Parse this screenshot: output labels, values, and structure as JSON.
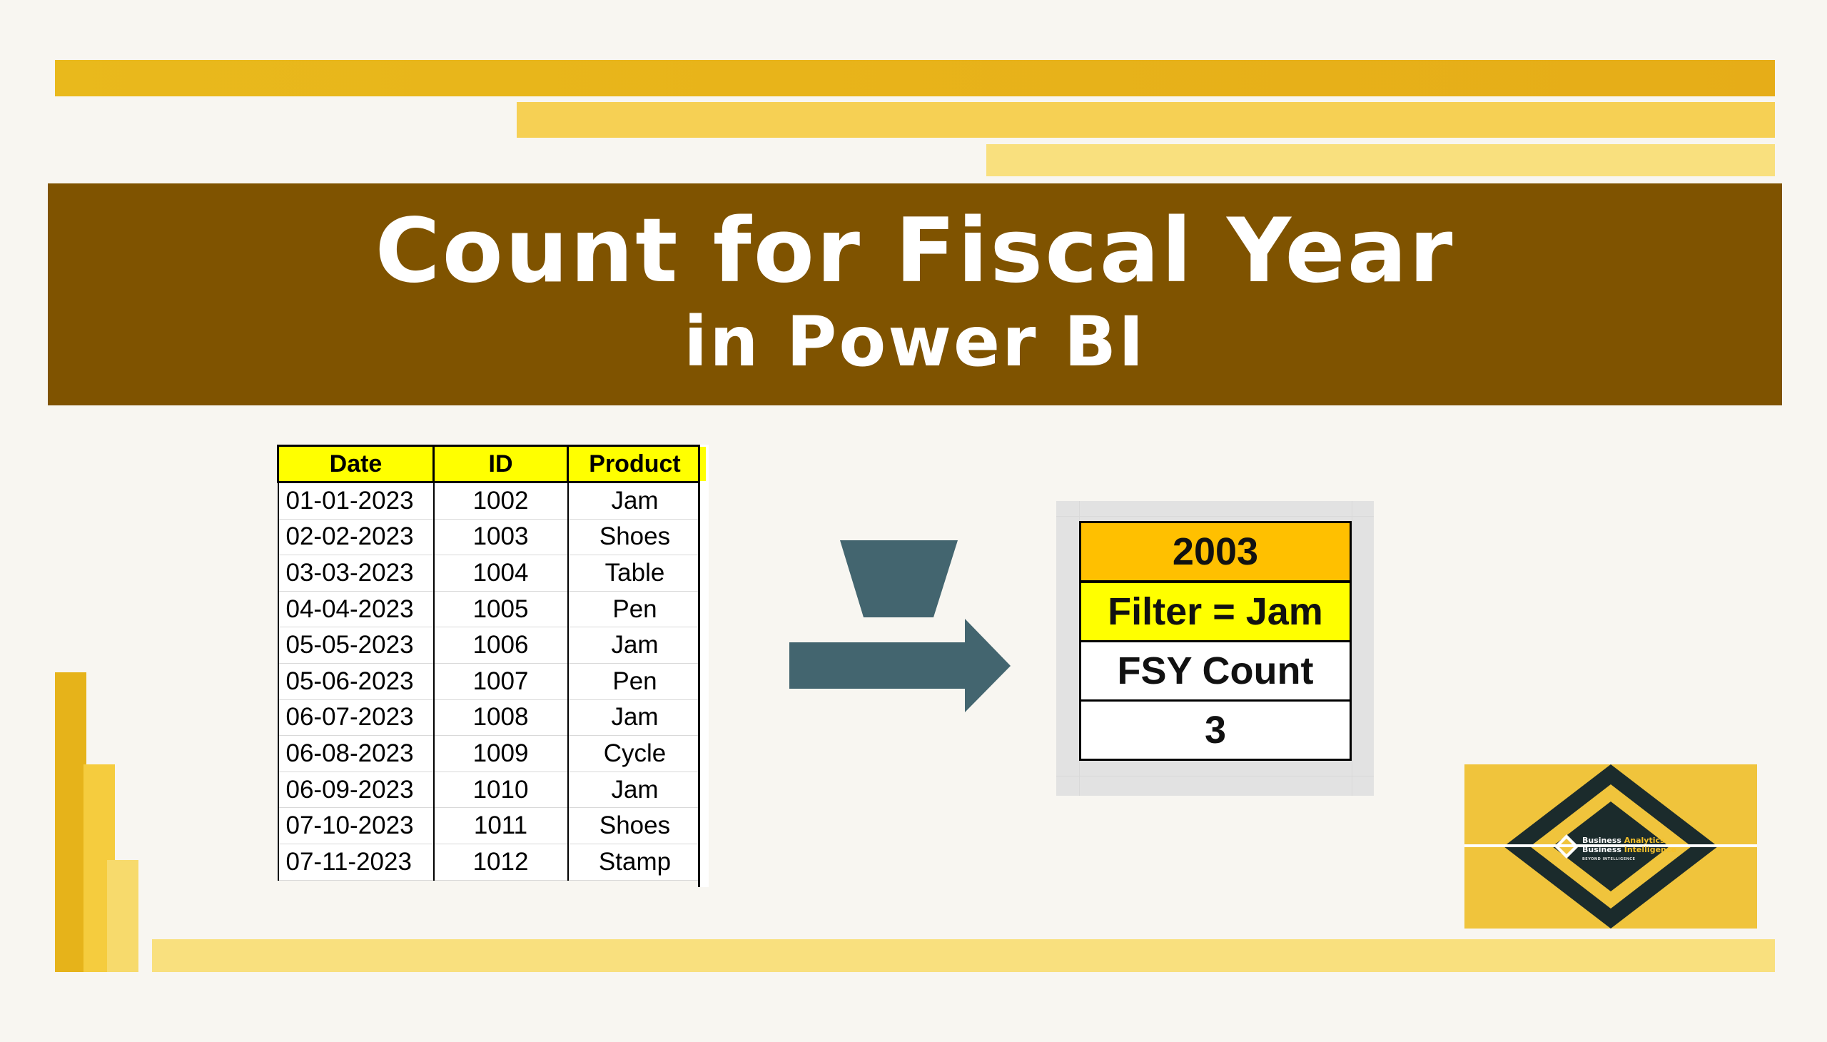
{
  "banner": {
    "title": "Count for Fiscal Year",
    "subtitle": "in Power BI"
  },
  "data_table": {
    "headers": [
      "Date",
      "ID",
      "Product"
    ],
    "rows": [
      [
        "01-01-2023",
        "1002",
        "Jam"
      ],
      [
        "02-02-2023",
        "1003",
        "Shoes"
      ],
      [
        "03-03-2023",
        "1004",
        "Table"
      ],
      [
        "04-04-2023",
        "1005",
        "Pen"
      ],
      [
        "05-05-2023",
        "1006",
        "Jam"
      ],
      [
        "05-06-2023",
        "1007",
        "Pen"
      ],
      [
        "06-07-2023",
        "1008",
        "Jam"
      ],
      [
        "06-08-2023",
        "1009",
        "Cycle"
      ],
      [
        "06-09-2023",
        "1010",
        "Jam"
      ],
      [
        "07-10-2023",
        "1011",
        "Shoes"
      ],
      [
        "07-11-2023",
        "1012",
        "Stamp"
      ]
    ]
  },
  "result": {
    "year": "2003",
    "filter": "Filter = Jam",
    "label": "FSY Count",
    "value": "3"
  },
  "logo": {
    "line1_a": "Business ",
    "line1_b": "Analytics",
    "line2_a": "Business ",
    "line2_b": "Intelligence",
    "tagline": "BEYOND INTELLIGENCE"
  },
  "colors": {
    "banner": "#7f5300",
    "header_yellow": "#ffff00",
    "year_orange": "#ffc000",
    "arrow": "#43656f",
    "gold": "#e9b91c"
  },
  "icons": [
    "funnel-icon",
    "right-arrow-icon"
  ]
}
